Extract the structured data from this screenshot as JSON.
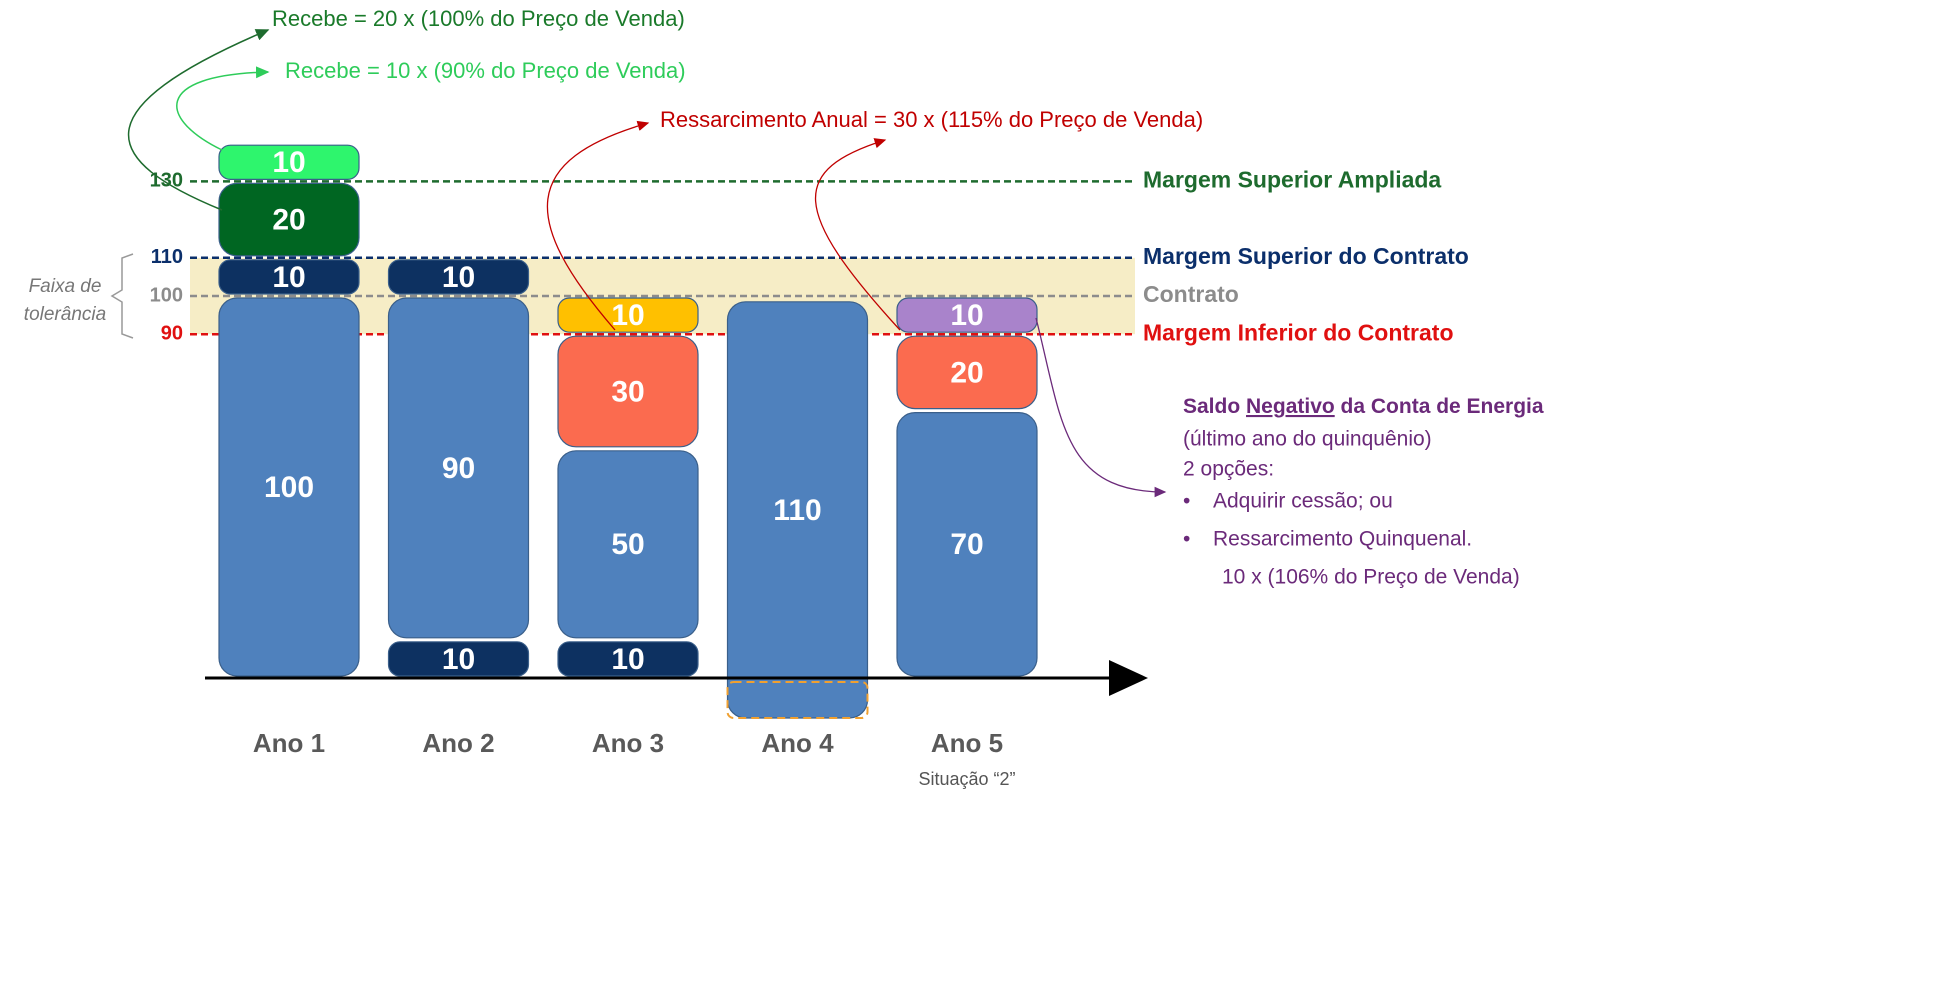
{
  "reference_lines": [
    {
      "value": 130,
      "label": "Margem Superior Ampliada",
      "color": "#1e6b2e"
    },
    {
      "value": 110,
      "label": "Margem Superior do Contrato",
      "color": "#0b2f6b"
    },
    {
      "value": 100,
      "label": "Contrato",
      "color": "#8c8c8c"
    },
    {
      "value": 90,
      "label": "Margem Inferior do Contrato",
      "color": "#e01010"
    }
  ],
  "tolerance_band": {
    "label": [
      "Faixa de",
      "tolerância"
    ]
  },
  "bars": [
    {
      "label": "Ano 1",
      "segments": [
        {
          "value": 100,
          "color": "#4f81bd"
        },
        {
          "value": 10,
          "color": "#0d3161"
        },
        {
          "value": 20,
          "color": "#006622"
        },
        {
          "value": 10,
          "color": "#2ef56d"
        }
      ]
    },
    {
      "label": "Ano 2",
      "segments": [
        {
          "value": 10,
          "color": "#0d3161"
        },
        {
          "value": 90,
          "color": "#4f81bd"
        },
        {
          "value": 10,
          "color": "#0d3161"
        }
      ]
    },
    {
      "label": "Ano 3",
      "segments": [
        {
          "value": 10,
          "color": "#0d3161"
        },
        {
          "value": 50,
          "color": "#4f81bd"
        },
        {
          "value": 30,
          "color": "#fb6b4f"
        },
        {
          "value": 10,
          "color": "#ffc000"
        }
      ]
    },
    {
      "label": "Ano 4",
      "segments": [
        {
          "value": 110,
          "color": "#4f81bd"
        }
      ]
    },
    {
      "label": "Ano 5",
      "note": "Situação “2”",
      "segments": [
        {
          "value": 70,
          "color": "#4f81bd"
        },
        {
          "value": 20,
          "color": "#fb6b4f"
        },
        {
          "value": 10,
          "color": "#a983cb"
        }
      ]
    }
  ],
  "annotations": {
    "recebe_20": "Recebe = 20 x (100% do Preço de Venda)",
    "recebe_10": "Recebe = 10 x (90% do Preço de Venda)",
    "ressarcimento_anual": "Ressarcimento Anual = 30 x (115% do Preço de Venda)"
  },
  "side_note": {
    "title": [
      "Saldo ",
      "Negativo",
      " da Conta de Energia"
    ],
    "lines": [
      "(último ano do quinquênio)",
      "2 opções:"
    ],
    "bullets": [
      "Adquirir cessão; ou",
      "Ressarcimento Quinquenal."
    ],
    "detail": "10 x (106% do Preço de Venda)"
  }
}
